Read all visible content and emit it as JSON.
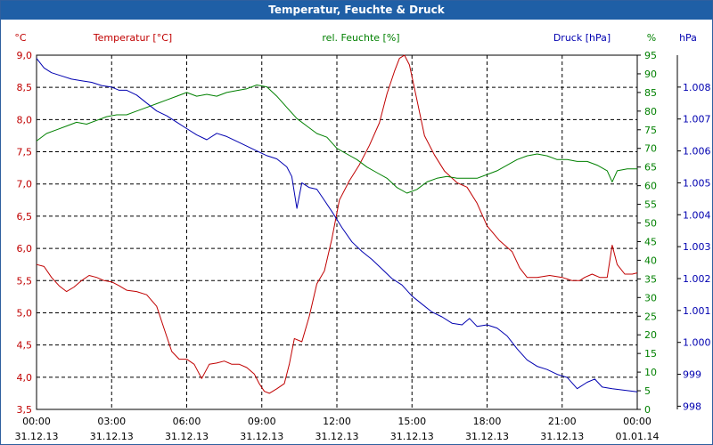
{
  "chart_data": {
    "type": "line",
    "title": "Temperatur, Feuchte & Druck",
    "x_ticks": [
      {
        "time": "00:00",
        "date": "31.12.13"
      },
      {
        "time": "03:00",
        "date": "31.12.13"
      },
      {
        "time": "06:00",
        "date": "31.12.13"
      },
      {
        "time": "09:00",
        "date": "31.12.13"
      },
      {
        "time": "12:00",
        "date": "31.12.13"
      },
      {
        "time": "15:00",
        "date": "31.12.13"
      },
      {
        "time": "18:00",
        "date": "31.12.13"
      },
      {
        "time": "21:00",
        "date": "31.12.13"
      },
      {
        "time": "00:00",
        "date": "01.01.14"
      }
    ],
    "x_range_hours": [
      0,
      24
    ],
    "axes": {
      "temperature": {
        "unit": "°C",
        "range": [
          3.5,
          9.0
        ],
        "ticks": [
          "9,0",
          "8,5",
          "8,0",
          "7,5",
          "7,0",
          "6,5",
          "6,0",
          "5,5",
          "5,0",
          "4,5",
          "4,0",
          "3,5"
        ]
      },
      "humidity": {
        "unit": "%",
        "range": [
          0,
          95
        ],
        "ticks": [
          "95",
          "90",
          "85",
          "80",
          "75",
          "70",
          "65",
          "60",
          "55",
          "50",
          "45",
          "40",
          "35",
          "30",
          "25",
          "20",
          "15",
          "10",
          "5",
          "0"
        ]
      },
      "pressure": {
        "unit": "hPa",
        "range": [
          997.9,
          1009.0
        ],
        "ticks": [
          "1.008",
          "1.007",
          "1.006",
          "1.005",
          "1.004",
          "1.003",
          "1.002",
          "1.001",
          "1.000",
          "999",
          "998"
        ]
      }
    },
    "grid": true,
    "legend": "top",
    "series": [
      {
        "name": "Temperatur [°C]",
        "axis": "temperature",
        "color": "#c00000",
        "points": [
          [
            0,
            5.75
          ],
          [
            0.3,
            5.72
          ],
          [
            0.6,
            5.55
          ],
          [
            0.9,
            5.42
          ],
          [
            1.2,
            5.33
          ],
          [
            1.5,
            5.4
          ],
          [
            1.8,
            5.5
          ],
          [
            2.1,
            5.58
          ],
          [
            2.4,
            5.55
          ],
          [
            2.7,
            5.5
          ],
          [
            3.0,
            5.48
          ],
          [
            3.3,
            5.42
          ],
          [
            3.6,
            5.35
          ],
          [
            4.0,
            5.33
          ],
          [
            4.4,
            5.28
          ],
          [
            4.8,
            5.1
          ],
          [
            5.1,
            4.75
          ],
          [
            5.4,
            4.4
          ],
          [
            5.7,
            4.28
          ],
          [
            6.0,
            4.28
          ],
          [
            6.3,
            4.2
          ],
          [
            6.6,
            3.98
          ],
          [
            6.9,
            4.2
          ],
          [
            7.2,
            4.22
          ],
          [
            7.5,
            4.25
          ],
          [
            7.8,
            4.2
          ],
          [
            8.1,
            4.2
          ],
          [
            8.4,
            4.15
          ],
          [
            8.7,
            4.05
          ],
          [
            8.9,
            3.9
          ],
          [
            9.1,
            3.78
          ],
          [
            9.3,
            3.75
          ],
          [
            9.6,
            3.82
          ],
          [
            9.9,
            3.9
          ],
          [
            10.1,
            4.2
          ],
          [
            10.3,
            4.6
          ],
          [
            10.6,
            4.55
          ],
          [
            10.9,
            4.95
          ],
          [
            11.2,
            5.45
          ],
          [
            11.5,
            5.65
          ],
          [
            11.8,
            6.15
          ],
          [
            12.1,
            6.75
          ],
          [
            12.5,
            7.05
          ],
          [
            12.9,
            7.3
          ],
          [
            13.3,
            7.6
          ],
          [
            13.7,
            7.95
          ],
          [
            14.0,
            8.4
          ],
          [
            14.3,
            8.75
          ],
          [
            14.5,
            8.95
          ],
          [
            14.7,
            9.0
          ],
          [
            14.9,
            8.85
          ],
          [
            15.2,
            8.3
          ],
          [
            15.5,
            7.75
          ],
          [
            15.9,
            7.45
          ],
          [
            16.3,
            7.2
          ],
          [
            16.8,
            7.02
          ],
          [
            17.2,
            6.95
          ],
          [
            17.6,
            6.7
          ],
          [
            18.0,
            6.35
          ],
          [
            18.5,
            6.12
          ],
          [
            19.0,
            5.95
          ],
          [
            19.3,
            5.7
          ],
          [
            19.6,
            5.55
          ],
          [
            20.0,
            5.55
          ],
          [
            20.5,
            5.58
          ],
          [
            21.0,
            5.55
          ],
          [
            21.4,
            5.5
          ],
          [
            21.7,
            5.5
          ],
          [
            21.9,
            5.55
          ],
          [
            22.2,
            5.6
          ],
          [
            22.5,
            5.55
          ],
          [
            22.8,
            5.55
          ],
          [
            23.0,
            6.05
          ],
          [
            23.2,
            5.75
          ],
          [
            23.5,
            5.6
          ],
          [
            23.8,
            5.6
          ],
          [
            24.0,
            5.62
          ]
        ]
      },
      {
        "name": "rel. Feuchte [%]",
        "axis": "humidity",
        "color": "#008000",
        "points": [
          [
            0,
            72
          ],
          [
            0.4,
            74
          ],
          [
            0.8,
            75
          ],
          [
            1.2,
            76
          ],
          [
            1.6,
            77
          ],
          [
            2.0,
            76.5
          ],
          [
            2.4,
            77.5
          ],
          [
            2.8,
            78.5
          ],
          [
            3.2,
            79
          ],
          [
            3.6,
            79
          ],
          [
            4.0,
            80
          ],
          [
            4.4,
            81
          ],
          [
            4.8,
            82
          ],
          [
            5.2,
            83
          ],
          [
            5.6,
            84
          ],
          [
            6.0,
            85
          ],
          [
            6.4,
            84
          ],
          [
            6.8,
            84.5
          ],
          [
            7.2,
            84
          ],
          [
            7.6,
            85
          ],
          [
            8.0,
            85.5
          ],
          [
            8.4,
            86
          ],
          [
            8.8,
            87
          ],
          [
            9.2,
            86.5
          ],
          [
            9.6,
            84
          ],
          [
            10.0,
            81
          ],
          [
            10.4,
            78
          ],
          [
            10.8,
            76
          ],
          [
            11.2,
            74
          ],
          [
            11.6,
            73
          ],
          [
            12.0,
            70
          ],
          [
            12.4,
            68.5
          ],
          [
            12.8,
            67
          ],
          [
            13.2,
            65
          ],
          [
            13.6,
            63.5
          ],
          [
            14.0,
            62
          ],
          [
            14.4,
            59.5
          ],
          [
            14.8,
            58
          ],
          [
            15.2,
            59
          ],
          [
            15.6,
            61
          ],
          [
            16.0,
            62
          ],
          [
            16.4,
            62.5
          ],
          [
            16.8,
            62
          ],
          [
            17.2,
            62
          ],
          [
            17.6,
            62
          ],
          [
            18.0,
            63
          ],
          [
            18.4,
            64
          ],
          [
            18.8,
            65.5
          ],
          [
            19.2,
            67
          ],
          [
            19.6,
            68
          ],
          [
            20.0,
            68.5
          ],
          [
            20.4,
            68
          ],
          [
            20.8,
            67
          ],
          [
            21.2,
            67
          ],
          [
            21.6,
            66.5
          ],
          [
            22.0,
            66.5
          ],
          [
            22.4,
            65.5
          ],
          [
            22.8,
            64
          ],
          [
            23.0,
            61
          ],
          [
            23.2,
            64
          ],
          [
            23.6,
            64.5
          ],
          [
            24.0,
            64.5
          ]
        ]
      },
      {
        "name": "Druck [hPa]",
        "axis": "pressure",
        "color": "#0000b0",
        "points": [
          [
            0,
            1008.9
          ],
          [
            0.3,
            1008.6
          ],
          [
            0.6,
            1008.45
          ],
          [
            1.0,
            1008.35
          ],
          [
            1.4,
            1008.25
          ],
          [
            1.8,
            1008.2
          ],
          [
            2.2,
            1008.15
          ],
          [
            2.6,
            1008.05
          ],
          [
            3.0,
            1008.0
          ],
          [
            3.3,
            1007.9
          ],
          [
            3.6,
            1007.9
          ],
          [
            4.0,
            1007.75
          ],
          [
            4.4,
            1007.5
          ],
          [
            4.8,
            1007.25
          ],
          [
            5.2,
            1007.1
          ],
          [
            5.6,
            1006.9
          ],
          [
            6.0,
            1006.7
          ],
          [
            6.4,
            1006.5
          ],
          [
            6.8,
            1006.35
          ],
          [
            7.2,
            1006.55
          ],
          [
            7.6,
            1006.45
          ],
          [
            8.0,
            1006.3
          ],
          [
            8.4,
            1006.15
          ],
          [
            8.8,
            1006.0
          ],
          [
            9.2,
            1005.85
          ],
          [
            9.6,
            1005.75
          ],
          [
            10.0,
            1005.5
          ],
          [
            10.2,
            1005.2
          ],
          [
            10.4,
            1004.2
          ],
          [
            10.6,
            1005.0
          ],
          [
            10.9,
            1004.85
          ],
          [
            11.2,
            1004.8
          ],
          [
            11.5,
            1004.45
          ],
          [
            11.8,
            1004.1
          ],
          [
            12.2,
            1003.6
          ],
          [
            12.6,
            1003.15
          ],
          [
            13.0,
            1002.85
          ],
          [
            13.4,
            1002.6
          ],
          [
            13.8,
            1002.3
          ],
          [
            14.2,
            1002.0
          ],
          [
            14.6,
            1001.8
          ],
          [
            15.0,
            1001.45
          ],
          [
            15.4,
            1001.2
          ],
          [
            15.8,
            1000.95
          ],
          [
            16.2,
            1000.8
          ],
          [
            16.6,
            1000.6
          ],
          [
            17.0,
            1000.55
          ],
          [
            17.3,
            1000.75
          ],
          [
            17.6,
            1000.5
          ],
          [
            18.0,
            1000.55
          ],
          [
            18.4,
            1000.45
          ],
          [
            18.8,
            1000.2
          ],
          [
            19.2,
            999.8
          ],
          [
            19.6,
            999.45
          ],
          [
            20.0,
            999.25
          ],
          [
            20.4,
            999.15
          ],
          [
            20.8,
            999.0
          ],
          [
            21.2,
            998.9
          ],
          [
            21.6,
            998.55
          ],
          [
            22.0,
            998.75
          ],
          [
            22.3,
            998.85
          ],
          [
            22.6,
            998.6
          ],
          [
            23.0,
            998.55
          ],
          [
            23.5,
            998.5
          ],
          [
            24.0,
            998.45
          ]
        ]
      }
    ]
  }
}
